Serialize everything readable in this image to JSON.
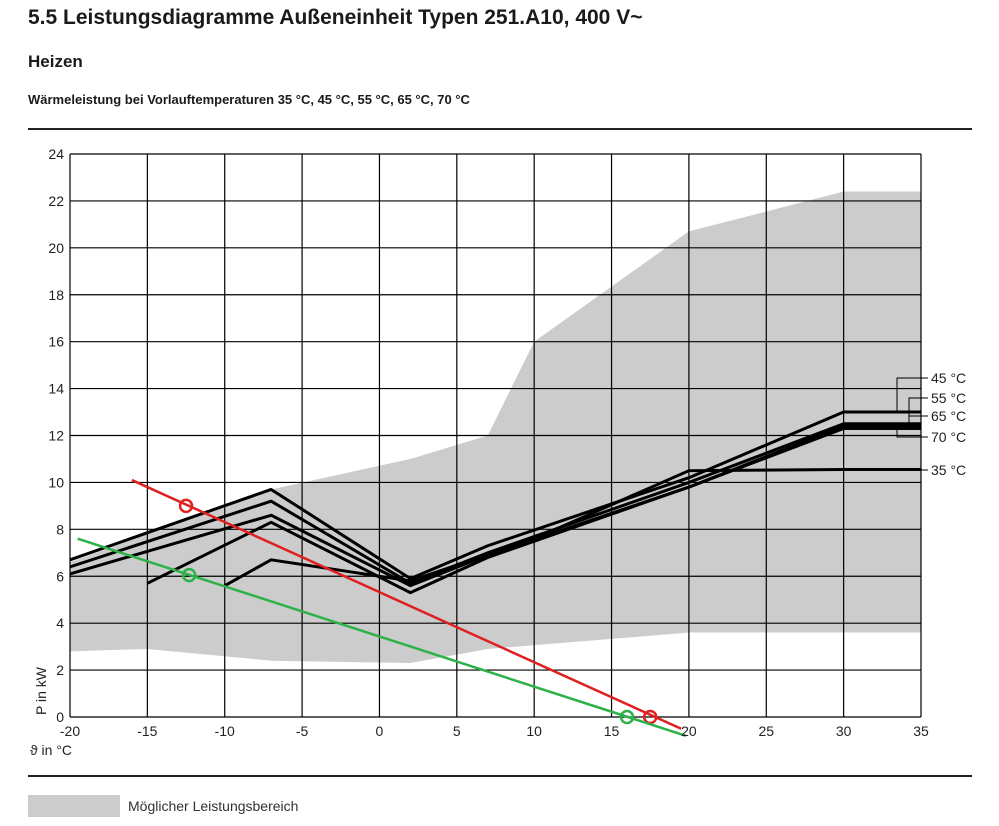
{
  "header": {
    "title": "5.5 Leistungsdiagramme Außeneinheit Typen 251.A10, 400 V~",
    "subtitle": "Heizen",
    "caption": "Wärmeleistung bei Vorlauftemperaturen 35 °C, 45 °C, 55 °C, 65 °C, 70 °C"
  },
  "legend": {
    "label": "Möglicher Leistungsbereich",
    "color": "#cccccc"
  },
  "chart_data": {
    "type": "line",
    "title": "Wärmeleistung bei Vorlauftemperaturen 35 °C, 45 °C, 55 °C, 65 °C, 70 °C",
    "xlabel": "ϑ in °C",
    "ylabel": "P in kW",
    "xlim": [
      -20,
      35
    ],
    "ylim": [
      0,
      24
    ],
    "xticks": [
      -20,
      -15,
      -10,
      -5,
      0,
      5,
      10,
      15,
      20,
      25,
      30,
      35
    ],
    "yticks": [
      0,
      2,
      4,
      6,
      8,
      10,
      12,
      14,
      16,
      18,
      20,
      22,
      24
    ],
    "grid": true,
    "range_area": {
      "name": "Möglicher Leistungsbereich",
      "color": "#cccccc",
      "upper": [
        [
          -20,
          6.6
        ],
        [
          -7,
          9.7
        ],
        [
          2,
          11.0
        ],
        [
          7,
          12.0
        ],
        [
          10,
          16.0
        ],
        [
          20,
          20.7
        ],
        [
          30,
          22.4
        ],
        [
          35,
          22.4
        ]
      ],
      "lower": [
        [
          -20,
          2.8
        ],
        [
          -15,
          2.9
        ],
        [
          -7,
          2.4
        ],
        [
          2,
          2.3
        ],
        [
          7,
          2.9
        ],
        [
          20,
          3.6
        ],
        [
          35,
          3.6
        ]
      ]
    },
    "series": [
      {
        "name": "45 °C",
        "color": "#000000",
        "x": [
          -20,
          -7,
          2,
          7,
          20,
          30,
          35
        ],
        "y": [
          6.7,
          9.7,
          5.9,
          7.3,
          10.2,
          13.0,
          13.0
        ]
      },
      {
        "name": "55 °C",
        "color": "#000000",
        "x": [
          -20,
          -7,
          2,
          7,
          20,
          30,
          35
        ],
        "y": [
          6.4,
          9.2,
          5.7,
          7.0,
          10.0,
          12.5,
          12.5
        ]
      },
      {
        "name": "65 °C",
        "color": "#000000",
        "x": [
          -20,
          -7,
          2,
          7,
          20,
          30,
          35
        ],
        "y": [
          6.1,
          8.6,
          5.6,
          6.9,
          9.8,
          12.4,
          12.4
        ]
      },
      {
        "name": "70 °C",
        "color": "#000000",
        "x": [
          -15,
          -7,
          2,
          7,
          20,
          30,
          35
        ],
        "y": [
          5.7,
          8.3,
          5.3,
          6.8,
          9.8,
          12.3,
          12.3
        ]
      },
      {
        "name": "35 °C",
        "color": "#000000",
        "x": [
          -10,
          -7,
          2,
          10,
          20,
          30,
          35
        ],
        "y": [
          5.6,
          6.7,
          5.8,
          7.6,
          10.5,
          10.55,
          10.55
        ]
      }
    ],
    "demand_lines": [
      {
        "color": "#e02020",
        "x": [
          -16,
          19.5
        ],
        "y": [
          10.1,
          -0.5
        ],
        "markers": [
          [
            -12.5,
            9.0
          ],
          [
            17.5,
            0.0
          ]
        ]
      },
      {
        "color": "#2db24a",
        "x": [
          -19.5,
          19.8
        ],
        "y": [
          7.6,
          -0.8
        ],
        "markers": [
          [
            -12.3,
            6.05
          ],
          [
            16,
            0.0
          ]
        ]
      }
    ]
  }
}
